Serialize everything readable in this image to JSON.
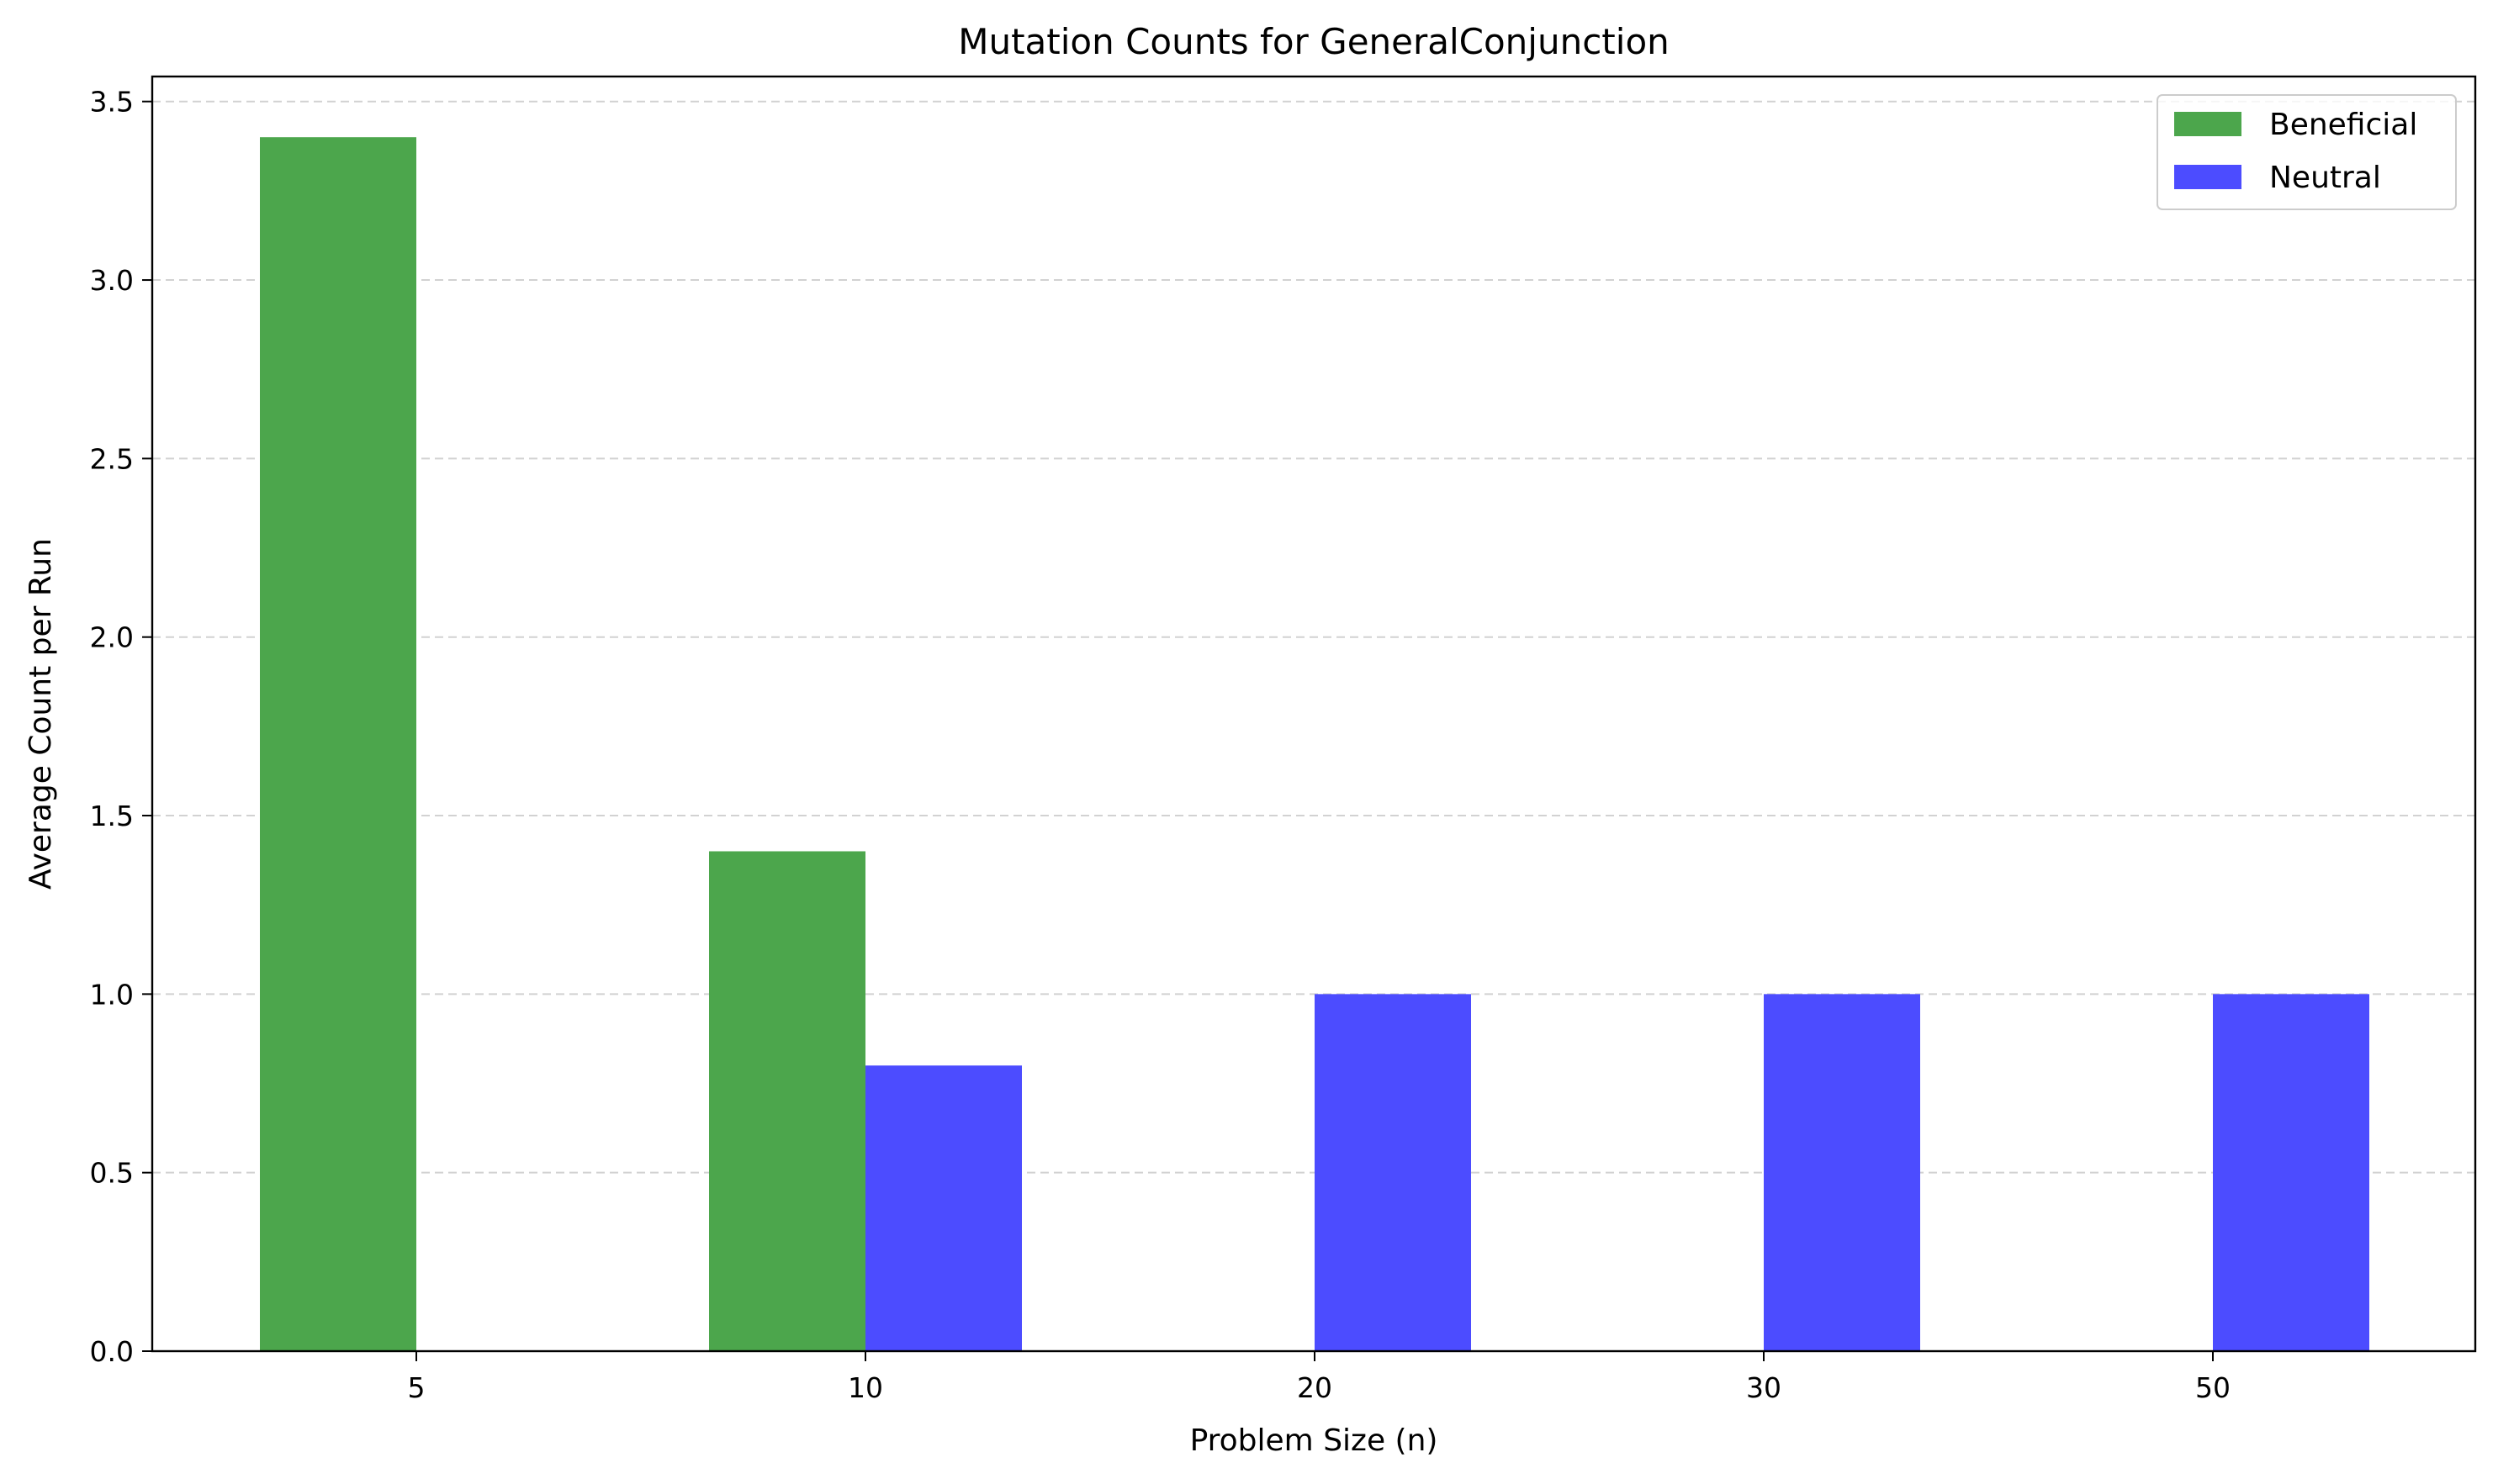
{
  "chart_data": {
    "type": "bar",
    "title": "Mutation Counts for GeneralConjunction",
    "xlabel": "Problem Size (n)",
    "ylabel": "Average Count per Run",
    "categories": [
      "5",
      "10",
      "20",
      "30",
      "50"
    ],
    "series": [
      {
        "name": "Beneficial",
        "values": [
          3.4,
          1.4,
          0,
          0,
          0
        ],
        "color": "#4ca64c"
      },
      {
        "name": "Neutral",
        "values": [
          0,
          0.8,
          1.0,
          1.0,
          1.0
        ],
        "color": "#4c4cff"
      }
    ],
    "ylim": [
      0,
      3.57
    ],
    "yticks": [
      "0.0",
      "0.5",
      "1.0",
      "1.5",
      "2.0",
      "2.5",
      "3.0",
      "3.5"
    ],
    "grid": "y, dashed",
    "legend": "top-right"
  }
}
